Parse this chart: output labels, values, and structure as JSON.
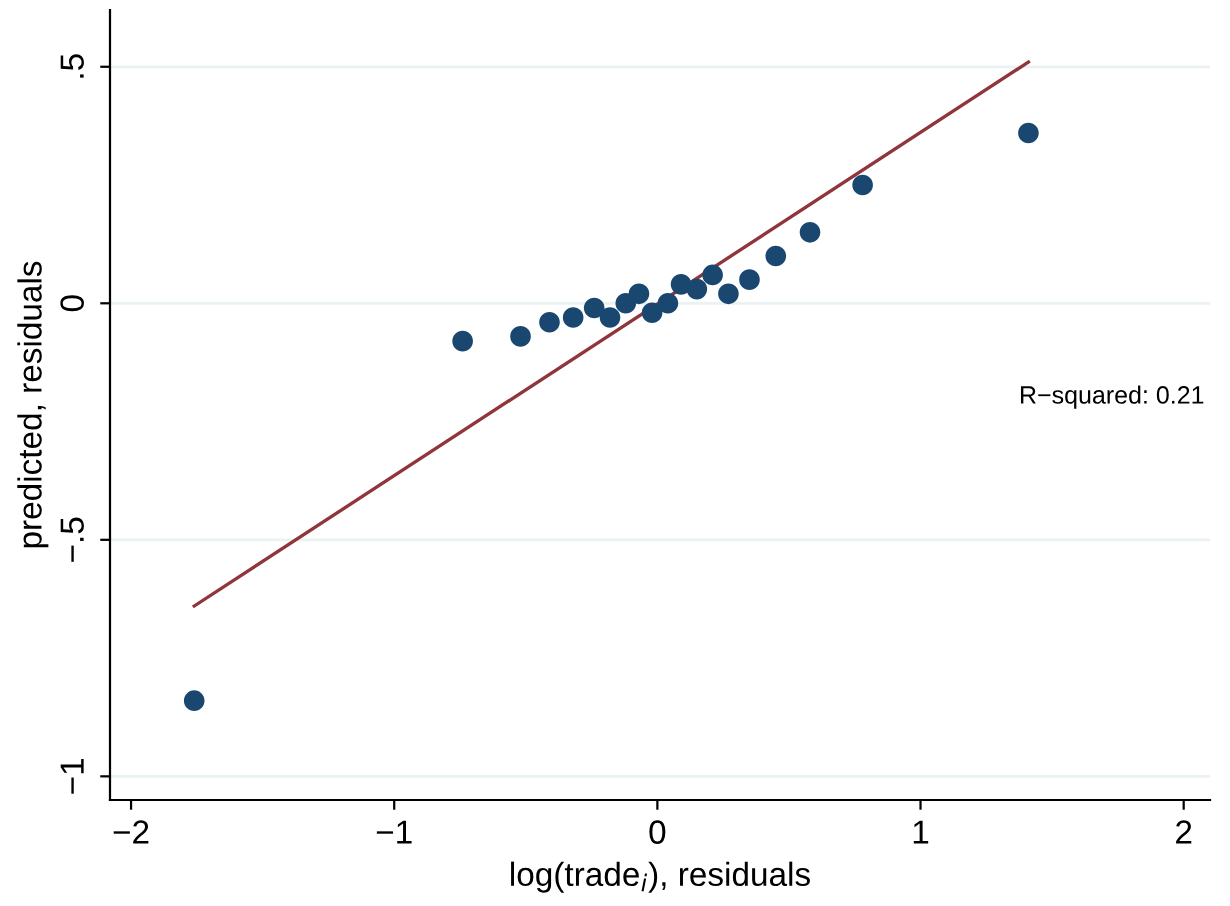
{
  "chart_data": {
    "type": "scatter",
    "xlabel": "log(trade$_{i}$), residuals",
    "ylabel": "predicted, residuals",
    "series": [
      {
        "color": "#1a476f",
        "marker": "circle",
        "x": [
          -1.76,
          -0.74,
          -0.52,
          -0.41,
          -0.32,
          -0.24,
          -0.18,
          -0.12,
          -0.07,
          -0.02,
          0.04,
          0.09,
          0.15,
          0.21,
          0.27,
          0.35,
          0.45,
          0.58,
          0.78,
          1.41
        ],
        "values": [
          -0.84,
          -0.08,
          -0.07,
          -0.04,
          -0.03,
          -0.01,
          -0.03,
          0.0,
          0.02,
          -0.02,
          0.0,
          0.04,
          0.03,
          0.06,
          0.02,
          0.05,
          0.1,
          0.15,
          0.25,
          0.36
        ]
      },
      {
        "type": "line",
        "marker": "none",
        "color": "#90353b",
        "x": [
          -1.76,
          1.41
        ],
        "values": [
          -0.64,
          0.51
        ]
      }
    ],
    "xlim": [
      -2.08,
      2.1
    ],
    "ylim": [
      -1.05,
      0.62
    ],
    "xticks": [
      {
        "value": -2,
        "label": "−2"
      },
      {
        "value": -1,
        "label": "−1"
      },
      0,
      1,
      2
    ],
    "yticks": [
      {
        "value": -1,
        "label": "−1"
      },
      {
        "value": -0.5,
        "label": "−.5"
      },
      0,
      {
        "value": 0.5,
        "label": ".5"
      }
    ],
    "grid": "y",
    "annotations": [
      "R−squared: 0.21"
    ]
  }
}
